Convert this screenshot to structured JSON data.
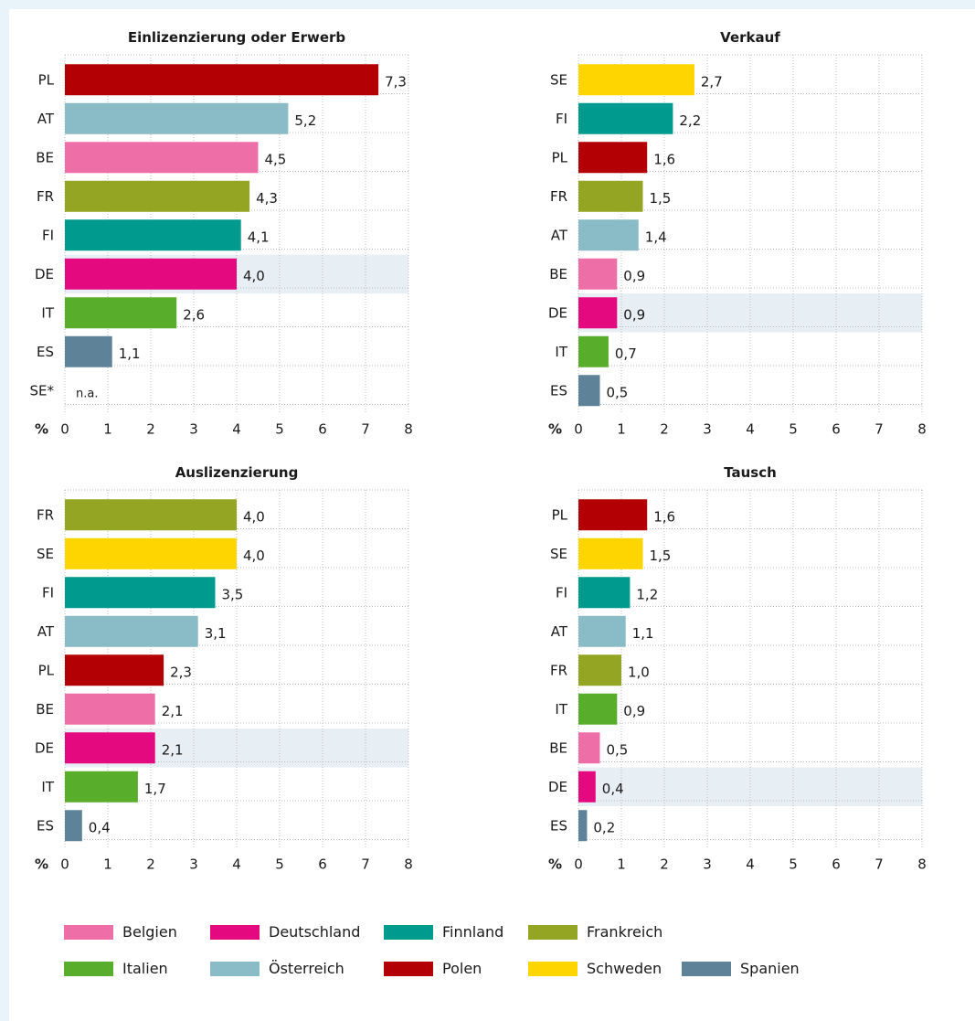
{
  "colors": {
    "BE": "#ee6fa7",
    "DE": "#e5097f",
    "FI": "#009b8f",
    "FR": "#93a522",
    "IT": "#58ad2a",
    "AT": "#89bcc6",
    "PL": "#b20005",
    "SE": "#ffd500",
    "ES": "#5e8297",
    "highlight": "#e8eff4"
  },
  "chart_data": [
    {
      "type": "bar",
      "orientation": "horizontal",
      "title": "Einlizenzierung oder Erwerb",
      "categories": [
        "PL",
        "AT",
        "BE",
        "FR",
        "FI",
        "DE",
        "IT",
        "ES",
        "SE*"
      ],
      "values": [
        7.3,
        5.2,
        4.5,
        4.3,
        4.1,
        4.0,
        2.6,
        1.1,
        null
      ],
      "value_labels": [
        "7,3",
        "5,2",
        "4,5",
        "4,3",
        "4,1",
        "4,0",
        "2,6",
        "1,1",
        "n.a."
      ],
      "highlight": "DE",
      "xlabel": "%",
      "xlim": [
        0,
        8
      ],
      "xticks": [
        "0",
        "1",
        "2",
        "3",
        "4",
        "5",
        "6",
        "7",
        "8"
      ],
      "grid": true
    },
    {
      "type": "bar",
      "orientation": "horizontal",
      "title": "Verkauf",
      "categories": [
        "SE",
        "FI",
        "PL",
        "FR",
        "AT",
        "BE",
        "DE",
        "IT",
        "ES"
      ],
      "values": [
        2.7,
        2.2,
        1.6,
        1.5,
        1.4,
        0.9,
        0.9,
        0.7,
        0.5
      ],
      "value_labels": [
        "2,7",
        "2,2",
        "1,6",
        "1,5",
        "1,4",
        "0,9",
        "0,9",
        "0,7",
        "0,5"
      ],
      "highlight": "DE",
      "xlabel": "%",
      "xlim": [
        0,
        8
      ],
      "xticks": [
        "0",
        "1",
        "2",
        "3",
        "4",
        "5",
        "6",
        "7",
        "8"
      ],
      "grid": true
    },
    {
      "type": "bar",
      "orientation": "horizontal",
      "title": "Auslizenzierung",
      "categories": [
        "FR",
        "SE",
        "FI",
        "AT",
        "PL",
        "BE",
        "DE",
        "IT",
        "ES"
      ],
      "values": [
        4.0,
        4.0,
        3.5,
        3.1,
        2.3,
        2.1,
        2.1,
        1.7,
        0.4
      ],
      "value_labels": [
        "4,0",
        "4,0",
        "3,5",
        "3,1",
        "2,3",
        "2,1",
        "2,1",
        "1,7",
        "0,4"
      ],
      "highlight": "DE",
      "xlabel": "%",
      "xlim": [
        0,
        8
      ],
      "xticks": [
        "0",
        "1",
        "2",
        "3",
        "4",
        "5",
        "6",
        "7",
        "8"
      ],
      "grid": true
    },
    {
      "type": "bar",
      "orientation": "horizontal",
      "title": "Tausch",
      "categories": [
        "PL",
        "SE",
        "FI",
        "AT",
        "FR",
        "IT",
        "BE",
        "DE",
        "ES"
      ],
      "values": [
        1.6,
        1.5,
        1.2,
        1.1,
        1.0,
        0.9,
        0.5,
        0.4,
        0.2
      ],
      "value_labels": [
        "1,6",
        "1,5",
        "1,2",
        "1,1",
        "1,0",
        "0,9",
        "0,5",
        "0,4",
        "0,2"
      ],
      "highlight": "DE",
      "xlabel": "%",
      "xlim": [
        0,
        8
      ],
      "xticks": [
        "0",
        "1",
        "2",
        "3",
        "4",
        "5",
        "6",
        "7",
        "8"
      ],
      "grid": true
    }
  ],
  "legend": [
    {
      "key": "BE",
      "label": "Belgien"
    },
    {
      "key": "DE",
      "label": "Deutschland"
    },
    {
      "key": "FI",
      "label": "Finnland"
    },
    {
      "key": "FR",
      "label": "Frankreich"
    },
    {
      "key": "IT",
      "label": "Italien"
    },
    {
      "key": "AT",
      "label": "Österreich"
    },
    {
      "key": "PL",
      "label": "Polen"
    },
    {
      "key": "SE",
      "label": "Schweden"
    },
    {
      "key": "ES",
      "label": "Spanien"
    }
  ]
}
